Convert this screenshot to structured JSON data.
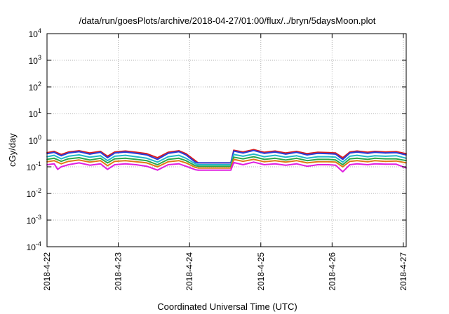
{
  "chart_data": {
    "type": "line",
    "title": "/data/run/goesPlots/archive/2018-04-27/01:00/flux/../bryn/5daysMoon.plot",
    "xlabel": "Coordinated Universal Time (UTC)",
    "ylabel": "cGy/day",
    "y_scale": "log",
    "ylim_exponent": [
      -4,
      4
    ],
    "y_tick_exponents": [
      -4,
      -3,
      -2,
      -1,
      0,
      1,
      2,
      3,
      4
    ],
    "y_tick_base": "10",
    "xlim_days": [
      0,
      5.04
    ],
    "x_ticks": [
      {
        "label": "2018-4-22",
        "day": 0
      },
      {
        "label": "2018-4-23",
        "day": 1
      },
      {
        "label": "2018-4-24",
        "day": 2
      },
      {
        "label": "2018-4-25",
        "day": 3
      },
      {
        "label": "2018-4-26",
        "day": 4
      },
      {
        "label": "2018-4-27",
        "day": 5
      }
    ],
    "grid": true,
    "data_gap_days": [
      2.12,
      2.58
    ],
    "series": [
      {
        "color": "#dd1c1c",
        "gap_value": 0.14,
        "points": [
          [
            0,
            0.34
          ],
          [
            0.1,
            0.38
          ],
          [
            0.2,
            0.29
          ],
          [
            0.3,
            0.36
          ],
          [
            0.45,
            0.4
          ],
          [
            0.6,
            0.33
          ],
          [
            0.75,
            0.38
          ],
          [
            0.85,
            0.25
          ],
          [
            0.95,
            0.36
          ],
          [
            1.1,
            0.39
          ],
          [
            1.25,
            0.35
          ],
          [
            1.4,
            0.31
          ],
          [
            1.55,
            0.22
          ],
          [
            1.7,
            0.35
          ],
          [
            1.85,
            0.4
          ],
          [
            1.95,
            0.31
          ],
          [
            2.08,
            0.17
          ],
          [
            2.12,
            0.14
          ],
          [
            2.58,
            0.14
          ],
          [
            2.62,
            0.42
          ],
          [
            2.75,
            0.36
          ],
          [
            2.9,
            0.44
          ],
          [
            3.05,
            0.35
          ],
          [
            3.2,
            0.39
          ],
          [
            3.35,
            0.33
          ],
          [
            3.5,
            0.38
          ],
          [
            3.65,
            0.31
          ],
          [
            3.8,
            0.35
          ],
          [
            3.95,
            0.34
          ],
          [
            4.05,
            0.33
          ],
          [
            4.15,
            0.22
          ],
          [
            4.25,
            0.36
          ],
          [
            4.35,
            0.39
          ],
          [
            4.5,
            0.35
          ],
          [
            4.6,
            0.38
          ],
          [
            4.75,
            0.36
          ],
          [
            4.9,
            0.37
          ],
          [
            5.04,
            0.31
          ]
        ]
      },
      {
        "color": "#2a3dd8",
        "gap_value": 0.14,
        "points": [
          [
            0,
            0.31
          ],
          [
            0.1,
            0.35
          ],
          [
            0.2,
            0.26
          ],
          [
            0.3,
            0.33
          ],
          [
            0.45,
            0.37
          ],
          [
            0.6,
            0.3
          ],
          [
            0.75,
            0.35
          ],
          [
            0.85,
            0.22
          ],
          [
            0.95,
            0.33
          ],
          [
            1.1,
            0.36
          ],
          [
            1.25,
            0.32
          ],
          [
            1.4,
            0.28
          ],
          [
            1.55,
            0.19
          ],
          [
            1.7,
            0.32
          ],
          [
            1.85,
            0.37
          ],
          [
            1.95,
            0.28
          ],
          [
            2.08,
            0.15
          ],
          [
            2.12,
            0.14
          ],
          [
            2.58,
            0.14
          ],
          [
            2.62,
            0.39
          ],
          [
            2.75,
            0.33
          ],
          [
            2.9,
            0.41
          ],
          [
            3.05,
            0.32
          ],
          [
            3.2,
            0.36
          ],
          [
            3.35,
            0.3
          ],
          [
            3.5,
            0.35
          ],
          [
            3.65,
            0.28
          ],
          [
            3.8,
            0.32
          ],
          [
            3.95,
            0.31
          ],
          [
            4.05,
            0.3
          ],
          [
            4.15,
            0.19
          ],
          [
            4.25,
            0.33
          ],
          [
            4.35,
            0.36
          ],
          [
            4.5,
            0.32
          ],
          [
            4.6,
            0.35
          ],
          [
            4.75,
            0.33
          ],
          [
            4.9,
            0.34
          ],
          [
            5.04,
            0.28
          ]
        ]
      },
      {
        "color": "#22b8c8",
        "gap_value": 0.12,
        "points": [
          [
            0,
            0.24
          ],
          [
            0.1,
            0.27
          ],
          [
            0.2,
            0.2
          ],
          [
            0.3,
            0.25
          ],
          [
            0.45,
            0.28
          ],
          [
            0.6,
            0.23
          ],
          [
            0.75,
            0.26
          ],
          [
            0.85,
            0.17
          ],
          [
            0.95,
            0.25
          ],
          [
            1.1,
            0.27
          ],
          [
            1.25,
            0.24
          ],
          [
            1.4,
            0.21
          ],
          [
            1.55,
            0.15
          ],
          [
            1.7,
            0.24
          ],
          [
            1.85,
            0.27
          ],
          [
            1.95,
            0.21
          ],
          [
            2.08,
            0.13
          ],
          [
            2.12,
            0.12
          ],
          [
            2.58,
            0.12
          ],
          [
            2.62,
            0.29
          ],
          [
            2.75,
            0.25
          ],
          [
            2.9,
            0.3
          ],
          [
            3.05,
            0.24
          ],
          [
            3.2,
            0.27
          ],
          [
            3.35,
            0.23
          ],
          [
            3.5,
            0.26
          ],
          [
            3.65,
            0.21
          ],
          [
            3.8,
            0.24
          ],
          [
            3.95,
            0.24
          ],
          [
            4.05,
            0.23
          ],
          [
            4.15,
            0.15
          ],
          [
            4.25,
            0.25
          ],
          [
            4.35,
            0.27
          ],
          [
            4.5,
            0.24
          ],
          [
            4.6,
            0.26
          ],
          [
            4.75,
            0.25
          ],
          [
            4.9,
            0.26
          ],
          [
            5.04,
            0.21
          ]
        ]
      },
      {
        "color": "#2aa84a",
        "gap_value": 0.105,
        "points": [
          [
            0,
            0.19
          ],
          [
            0.1,
            0.21
          ],
          [
            0.2,
            0.16
          ],
          [
            0.3,
            0.2
          ],
          [
            0.45,
            0.22
          ],
          [
            0.6,
            0.18
          ],
          [
            0.75,
            0.21
          ],
          [
            0.85,
            0.14
          ],
          [
            0.95,
            0.2
          ],
          [
            1.1,
            0.21
          ],
          [
            1.25,
            0.19
          ],
          [
            1.4,
            0.17
          ],
          [
            1.55,
            0.12
          ],
          [
            1.7,
            0.19
          ],
          [
            1.85,
            0.21
          ],
          [
            1.95,
            0.17
          ],
          [
            2.08,
            0.11
          ],
          [
            2.12,
            0.105
          ],
          [
            2.58,
            0.105
          ],
          [
            2.62,
            0.23
          ],
          [
            2.75,
            0.2
          ],
          [
            2.9,
            0.24
          ],
          [
            3.05,
            0.19
          ],
          [
            3.2,
            0.21
          ],
          [
            3.35,
            0.18
          ],
          [
            3.5,
            0.21
          ],
          [
            3.65,
            0.17
          ],
          [
            3.8,
            0.19
          ],
          [
            3.95,
            0.19
          ],
          [
            4.05,
            0.18
          ],
          [
            4.15,
            0.12
          ],
          [
            4.25,
            0.2
          ],
          [
            4.35,
            0.21
          ],
          [
            4.5,
            0.19
          ],
          [
            4.6,
            0.21
          ],
          [
            4.75,
            0.2
          ],
          [
            4.9,
            0.2
          ],
          [
            5.04,
            0.17
          ]
        ]
      },
      {
        "color": "#e07a14",
        "gap_value": 0.09,
        "points": [
          [
            0,
            0.155
          ],
          [
            0.1,
            0.17
          ],
          [
            0.2,
            0.13
          ],
          [
            0.3,
            0.16
          ],
          [
            0.45,
            0.18
          ],
          [
            0.6,
            0.15
          ],
          [
            0.75,
            0.17
          ],
          [
            0.85,
            0.11
          ],
          [
            0.95,
            0.16
          ],
          [
            1.1,
            0.17
          ],
          [
            1.25,
            0.155
          ],
          [
            1.4,
            0.14
          ],
          [
            1.55,
            0.1
          ],
          [
            1.7,
            0.155
          ],
          [
            1.85,
            0.17
          ],
          [
            1.95,
            0.14
          ],
          [
            2.08,
            0.095
          ],
          [
            2.12,
            0.09
          ],
          [
            2.58,
            0.09
          ],
          [
            2.62,
            0.19
          ],
          [
            2.75,
            0.16
          ],
          [
            2.9,
            0.19
          ],
          [
            3.05,
            0.155
          ],
          [
            3.2,
            0.17
          ],
          [
            3.35,
            0.15
          ],
          [
            3.5,
            0.17
          ],
          [
            3.65,
            0.14
          ],
          [
            3.8,
            0.155
          ],
          [
            3.95,
            0.155
          ],
          [
            4.05,
            0.15
          ],
          [
            4.15,
            0.1
          ],
          [
            4.25,
            0.16
          ],
          [
            4.35,
            0.17
          ],
          [
            4.5,
            0.155
          ],
          [
            4.6,
            0.17
          ],
          [
            4.75,
            0.16
          ],
          [
            4.9,
            0.165
          ],
          [
            5.04,
            0.14
          ]
        ]
      },
      {
        "color": "#e01ee0",
        "gap_value": 0.075,
        "points": [
          [
            0,
            0.12
          ],
          [
            0.1,
            0.13
          ],
          [
            0.15,
            0.08
          ],
          [
            0.2,
            0.1
          ],
          [
            0.3,
            0.12
          ],
          [
            0.45,
            0.14
          ],
          [
            0.6,
            0.115
          ],
          [
            0.75,
            0.13
          ],
          [
            0.85,
            0.08
          ],
          [
            0.95,
            0.12
          ],
          [
            1.1,
            0.13
          ],
          [
            1.25,
            0.12
          ],
          [
            1.4,
            0.105
          ],
          [
            1.55,
            0.075
          ],
          [
            1.7,
            0.12
          ],
          [
            1.85,
            0.13
          ],
          [
            1.95,
            0.105
          ],
          [
            2.08,
            0.078
          ],
          [
            2.12,
            0.075
          ],
          [
            2.58,
            0.075
          ],
          [
            2.62,
            0.145
          ],
          [
            2.75,
            0.12
          ],
          [
            2.9,
            0.15
          ],
          [
            3.05,
            0.12
          ],
          [
            3.2,
            0.13
          ],
          [
            3.35,
            0.115
          ],
          [
            3.5,
            0.13
          ],
          [
            3.65,
            0.105
          ],
          [
            3.8,
            0.12
          ],
          [
            3.95,
            0.12
          ],
          [
            4.05,
            0.115
          ],
          [
            4.15,
            0.065
          ],
          [
            4.25,
            0.12
          ],
          [
            4.35,
            0.13
          ],
          [
            4.5,
            0.12
          ],
          [
            4.6,
            0.13
          ],
          [
            4.75,
            0.125
          ],
          [
            4.9,
            0.125
          ],
          [
            5.04,
            0.09
          ]
        ]
      }
    ]
  }
}
